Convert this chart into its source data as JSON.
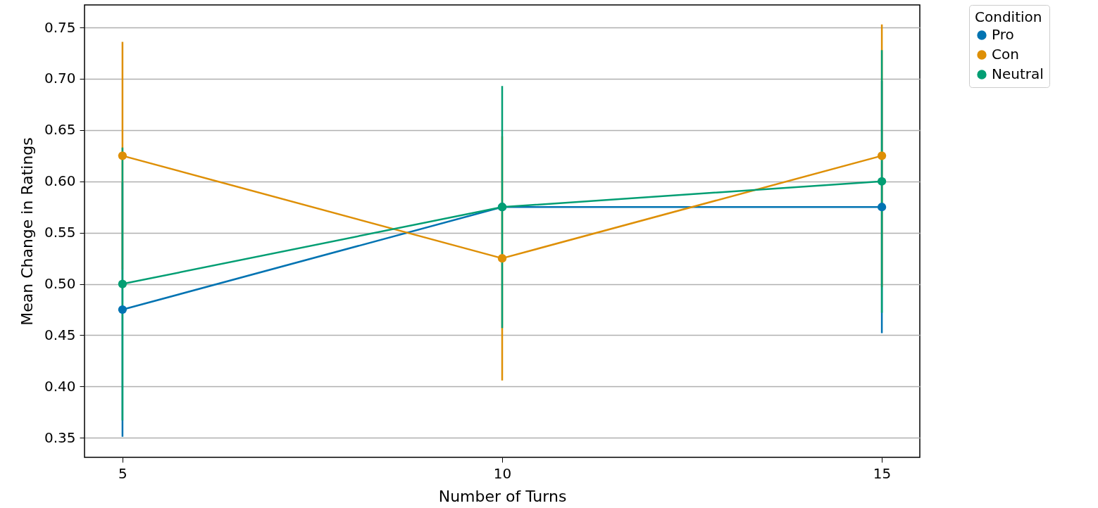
{
  "chart_data": {
    "type": "line",
    "xlabel": "Number of Turns",
    "ylabel": "Mean Change in Ratings",
    "legend_title": "Condition",
    "x": [
      5,
      10,
      15
    ],
    "series": [
      {
        "name": "Pro",
        "color": "#0173b2",
        "values": [
          0.475,
          0.575,
          0.575
        ],
        "errors": [
          0.124,
          null,
          0.123
        ]
      },
      {
        "name": "Con",
        "color": "#de8f05",
        "values": [
          0.625,
          0.525,
          0.625
        ],
        "errors": [
          0.111,
          0.119,
          0.128
        ]
      },
      {
        "name": "Neutral",
        "color": "#029e73",
        "values": [
          0.5,
          0.575,
          0.6
        ],
        "errors": [
          0.133,
          0.118,
          0.128
        ]
      }
    ],
    "xlim": [
      4.5,
      15.5
    ],
    "xticks": [
      5,
      10,
      15
    ],
    "ylim": [
      0.331,
      0.772
    ],
    "yticks": [
      0.35,
      {
        "value": 0.4,
        "label": "0.40"
      },
      0.45,
      {
        "value": 0.5,
        "label": "0.50"
      },
      0.55,
      {
        "value": 0.6,
        "label": "0.60"
      },
      0.65,
      {
        "value": 0.7,
        "label": "0.70"
      },
      0.75
    ],
    "grid": "y",
    "legend": "top right",
    "marker": "circle",
    "line_style": "solid"
  }
}
